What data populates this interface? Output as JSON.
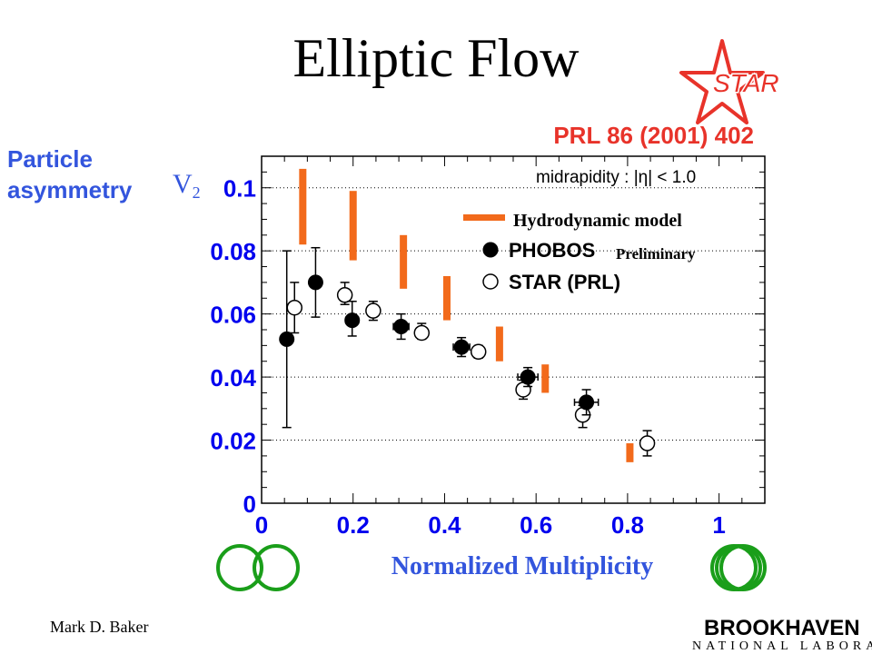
{
  "slide": {
    "title": "Elliptic Flow",
    "reference": "PRL 86 (2001) 402",
    "y_axis_label_lines": [
      "Particle",
      "asymmetry"
    ],
    "x_axis_label": "Normalized Multiplicity",
    "author": "Mark D. Baker",
    "star_logo_text": "STAR",
    "bnl_logo_line1": "BROOKHAVEN",
    "bnl_logo_line2": "NATIONAL LABORATORY"
  },
  "colors": {
    "accent_red": "#e8332a",
    "label_blue": "#3355dd",
    "tick_blue": "#0000ee",
    "hydro_orange": "#f26a1b",
    "logo_green": "#1a9e1a"
  },
  "chart_data": {
    "type": "scatter",
    "xlim": [
      0,
      1.1
    ],
    "ylim": [
      0,
      0.11
    ],
    "x_ticks": [
      0,
      0.2,
      0.4,
      0.6,
      0.8,
      1
    ],
    "x_tick_labels": [
      "0",
      "0.2",
      "0.4",
      "0.6",
      "0.8",
      "1"
    ],
    "y_ticks": [
      0,
      0.02,
      0.04,
      0.06,
      0.08,
      0.1
    ],
    "y_tick_labels": [
      "0",
      "0.02",
      "0.04",
      "0.06",
      "0.08",
      "0.1"
    ],
    "grid_y": true,
    "ylabel": "v2",
    "annotation": "midrapidity : |η| < 1.0",
    "preliminary_label": "Preliminary",
    "series": [
      {
        "name": "Hydrodynamic model",
        "style": "vertical-band",
        "points": [
          {
            "x": 0.09,
            "ylow": 0.082,
            "yhigh": 0.106
          },
          {
            "x": 0.2,
            "ylow": 0.077,
            "yhigh": 0.099
          },
          {
            "x": 0.31,
            "ylow": 0.068,
            "yhigh": 0.085
          },
          {
            "x": 0.405,
            "ylow": 0.058,
            "yhigh": 0.072
          },
          {
            "x": 0.52,
            "ylow": 0.045,
            "yhigh": 0.056
          },
          {
            "x": 0.62,
            "ylow": 0.035,
            "yhigh": 0.044
          },
          {
            "x": 0.805,
            "ylow": 0.013,
            "yhigh": 0.019
          }
        ]
      },
      {
        "name": "PHOBOS",
        "style": "filled-circle",
        "points": [
          {
            "x": 0.055,
            "y": 0.052,
            "ylow": 0.024,
            "yhigh": 0.08,
            "xerr": 0.012
          },
          {
            "x": 0.118,
            "y": 0.07,
            "ylow": 0.059,
            "yhigh": 0.081,
            "xerr": 0.012
          },
          {
            "x": 0.198,
            "y": 0.058,
            "ylow": 0.053,
            "yhigh": 0.064,
            "xerr": 0.014
          },
          {
            "x": 0.305,
            "y": 0.056,
            "ylow": 0.052,
            "yhigh": 0.06,
            "xerr": 0.017
          },
          {
            "x": 0.437,
            "y": 0.0495,
            "ylow": 0.0465,
            "yhigh": 0.0525,
            "xerr": 0.018
          },
          {
            "x": 0.582,
            "y": 0.04,
            "ylow": 0.037,
            "yhigh": 0.043,
            "xerr": 0.022
          },
          {
            "x": 0.71,
            "y": 0.032,
            "ylow": 0.028,
            "yhigh": 0.036,
            "xerr": 0.026
          }
        ]
      },
      {
        "name": "STAR (PRL)",
        "style": "open-circle",
        "points": [
          {
            "x": 0.072,
            "y": 0.062,
            "ylow": 0.054,
            "yhigh": 0.07
          },
          {
            "x": 0.182,
            "y": 0.066,
            "ylow": 0.063,
            "yhigh": 0.07
          },
          {
            "x": 0.244,
            "y": 0.061,
            "ylow": 0.058,
            "yhigh": 0.064
          },
          {
            "x": 0.35,
            "y": 0.054,
            "ylow": 0.052,
            "yhigh": 0.057
          },
          {
            "x": 0.474,
            "y": 0.048,
            "ylow": 0.046,
            "yhigh": 0.05
          },
          {
            "x": 0.572,
            "y": 0.036,
            "ylow": 0.033,
            "yhigh": 0.039
          },
          {
            "x": 0.702,
            "y": 0.028,
            "ylow": 0.024,
            "yhigh": 0.031
          },
          {
            "x": 0.843,
            "y": 0.019,
            "ylow": 0.015,
            "yhigh": 0.023
          }
        ]
      }
    ]
  }
}
